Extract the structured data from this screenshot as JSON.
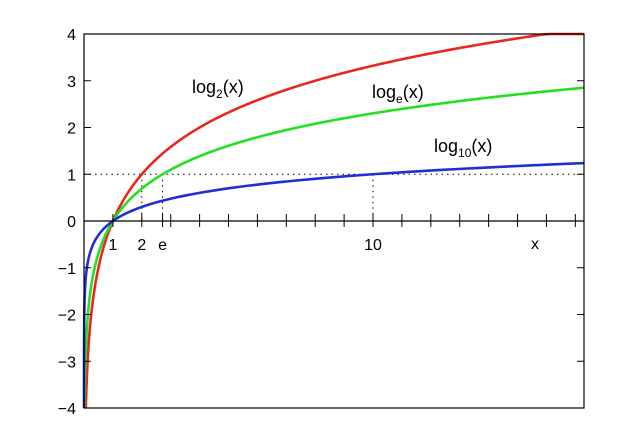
{
  "chart_data": {
    "type": "line",
    "title": "",
    "xlabel": "x",
    "ylabel": "",
    "xlim": [
      0,
      17.3
    ],
    "ylim": [
      -4,
      4
    ],
    "grid": false,
    "y_ticks": [
      -4,
      -3,
      -2,
      -1,
      0,
      1,
      2,
      3,
      4
    ],
    "y_tick_labels": [
      "−4",
      "−3",
      "−2",
      "−1",
      "0",
      "1",
      "2",
      "3",
      "4"
    ],
    "x_ticks": [
      1,
      2,
      2.718,
      10
    ],
    "x_tick_labels": [
      "1",
      "2",
      "e",
      "10"
    ],
    "x_ticks_unlabeled": [
      3,
      4,
      5,
      6,
      7,
      8,
      9,
      11,
      12,
      13,
      14,
      15,
      16,
      17
    ],
    "reference_line": {
      "y": 1,
      "style": "dotted"
    },
    "series": [
      {
        "name": "log2(x)",
        "base": 2,
        "color": "#e8281e",
        "label_main": "log",
        "label_sub": "2",
        "label_tail": "(x)"
      },
      {
        "name": "loge(x)",
        "base": 2.718281828,
        "color": "#22e022",
        "label_main": "log",
        "label_sub": "e",
        "label_tail": "(x)"
      },
      {
        "name": "log10(x)",
        "base": 10,
        "color": "#1f2fd8",
        "label_main": "log",
        "label_sub": "10",
        "label_tail": "(x)"
      }
    ],
    "sample_points": {
      "x": [
        1,
        2,
        2.718,
        4,
        8,
        10,
        16
      ],
      "log2": [
        0,
        1,
        1.443,
        2,
        3,
        3.322,
        4
      ],
      "loge": [
        0,
        0.693,
        1,
        1.386,
        2.079,
        2.303,
        2.773
      ],
      "log10": [
        0,
        0.301,
        0.434,
        0.602,
        0.903,
        1,
        1.204
      ]
    }
  }
}
